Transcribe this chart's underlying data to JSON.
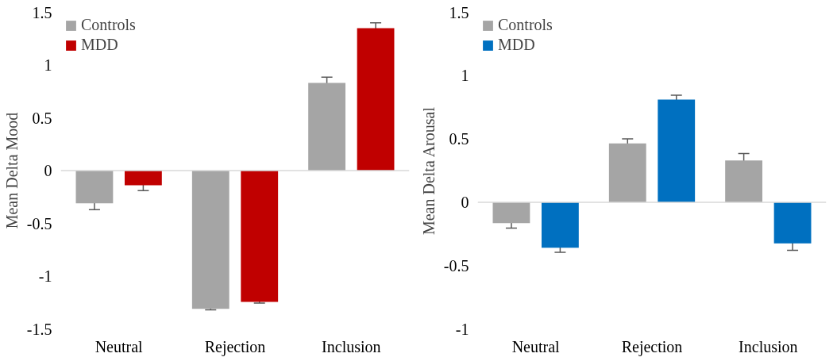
{
  "chart_data": [
    {
      "type": "bar",
      "ylabel": "Mean Delta Mood",
      "categories": [
        "Neutral",
        "Rejection",
        "Inclusion"
      ],
      "ylim": [
        -1.5,
        1.5
      ],
      "yticks": [
        -1.5,
        -1,
        -0.5,
        0,
        0.5,
        1,
        1.5
      ],
      "ref_lines": [
        {
          "axis": "y",
          "value": 0,
          "color": "#d9d9d9"
        }
      ],
      "legend": "top left",
      "series": [
        {
          "name": "Controls",
          "color": "#a5a5a5",
          "values": [
            -0.31,
            -1.31,
            0.83
          ],
          "errors": [
            0.06,
            0.01,
            0.055
          ]
        },
        {
          "name": "MDD",
          "color": "#c00000",
          "values": [
            -0.14,
            -1.245,
            1.35
          ],
          "errors": [
            0.05,
            0.01,
            0.05
          ]
        }
      ]
    },
    {
      "type": "bar",
      "ylabel": "Mean Delta Arousal",
      "categories": [
        "Neutral",
        "Rejection",
        "Inclusion"
      ],
      "ylim": [
        -1,
        1.5
      ],
      "yticks": [
        -1,
        -0.5,
        0,
        0.5,
        1,
        1.5
      ],
      "ref_lines": [
        {
          "axis": "y",
          "value": 0,
          "color": "#d9d9d9"
        }
      ],
      "legend": "top left",
      "series": [
        {
          "name": "Controls",
          "color": "#a5a5a5",
          "values": [
            -0.165,
            0.465,
            0.33
          ],
          "errors": [
            0.04,
            0.035,
            0.055
          ]
        },
        {
          "name": "MDD",
          "color": "#0070c0",
          "values": [
            -0.36,
            0.81,
            -0.325
          ],
          "errors": [
            0.035,
            0.035,
            0.055
          ]
        }
      ]
    }
  ]
}
